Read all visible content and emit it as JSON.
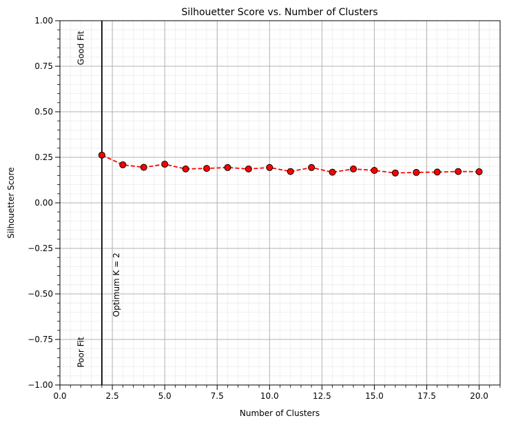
{
  "chart_data": {
    "type": "line",
    "title": "Silhouetter Score vs. Number of Clusters",
    "xlabel": "Number of Clusters",
    "ylabel": "Silhouetter Score",
    "xlim": [
      0,
      21
    ],
    "ylim": [
      -1.0,
      1.0
    ],
    "grid": true,
    "x_ticks": [
      "0.0",
      "2.5",
      "5.0",
      "7.5",
      "10.0",
      "12.5",
      "15.0",
      "17.5",
      "20.0"
    ],
    "y_ticks": [
      "1.00",
      "0.75",
      "0.50",
      "0.25",
      "0.00",
      "−0.25",
      "−0.50",
      "−0.75",
      "−1.00"
    ],
    "series": [
      {
        "line_color": "#ff0000",
        "line_style": "dashed",
        "marker_fill": "#ff0000",
        "marker_edge": "#000000",
        "x": [
          2,
          3,
          4,
          5,
          6,
          7,
          8,
          9,
          10,
          11,
          12,
          13,
          14,
          15,
          16,
          17,
          18,
          19,
          20
        ],
        "y": [
          0.262,
          0.209,
          0.195,
          0.212,
          0.186,
          0.189,
          0.194,
          0.186,
          0.194,
          0.172,
          0.194,
          0.168,
          0.186,
          0.178,
          0.164,
          0.167,
          0.169,
          0.172,
          0.171
        ]
      }
    ],
    "vline": {
      "x": 2,
      "color": "#000000"
    },
    "annotations": [
      {
        "text": "Good Fit",
        "x": 1.0,
        "y": 0.85
      },
      {
        "text": "Poor Fit",
        "x": 1.0,
        "y": -0.82
      },
      {
        "text": "Optimum K = 2",
        "x": 2.7,
        "y": -0.45
      }
    ]
  }
}
